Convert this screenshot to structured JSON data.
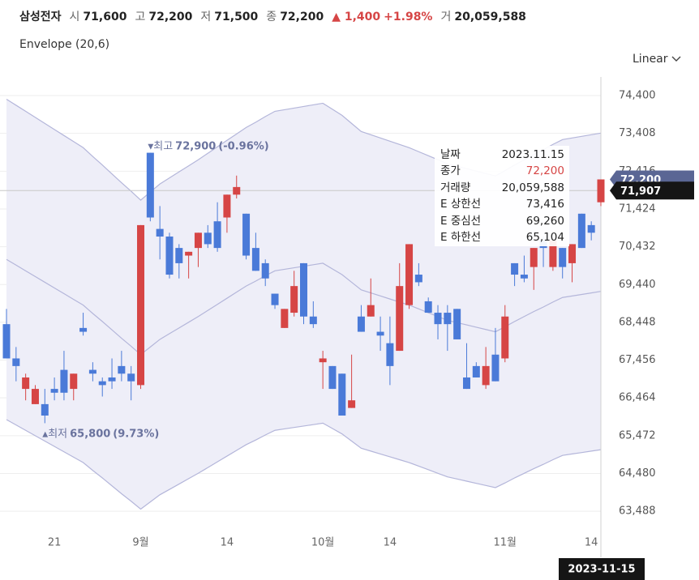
{
  "header": {
    "name": "삼성전자",
    "fields": [
      {
        "label": "시",
        "value": "71,600"
      },
      {
        "label": "고",
        "value": "72,200"
      },
      {
        "label": "저",
        "value": "71,500"
      },
      {
        "label": "종",
        "value": "72,200"
      }
    ],
    "change": "▲ 1,400",
    "change_pct": "+1.98%",
    "volume_label": "거",
    "volume": "20,059,588"
  },
  "indicator": "Envelope (20,6)",
  "scale_option": "Linear",
  "chart_data": {
    "type": "candlestick",
    "categories": [
      null,
      null,
      null,
      null,
      null,
      "21",
      null,
      null,
      null,
      null,
      null,
      null,
      null,
      null,
      "9월",
      null,
      null,
      null,
      null,
      null,
      null,
      null,
      null,
      "14",
      null,
      null,
      null,
      null,
      null,
      null,
      null,
      null,
      null,
      "10월",
      null,
      null,
      null,
      null,
      null,
      null,
      "14",
      null,
      null,
      null,
      null,
      null,
      null,
      null,
      null,
      null,
      null,
      null,
      "11월",
      null,
      null,
      null,
      null,
      null,
      null,
      null,
      null,
      "14",
      null
    ],
    "open": [
      68400,
      67500,
      66700,
      66300,
      66300,
      66700,
      67200,
      66700,
      68300,
      67200,
      66900,
      67000,
      67300,
      67100,
      66800,
      72900,
      70900,
      70700,
      70400,
      70200,
      70400,
      70800,
      71100,
      71200,
      71800,
      71300,
      70400,
      70000,
      69200,
      68300,
      68700,
      70000,
      68600,
      67400,
      67300,
      67100,
      66200,
      68600,
      68600,
      68200,
      67900,
      67700,
      68900,
      69700,
      69000,
      68700,
      68700,
      68800,
      67000,
      67300,
      66800,
      67600,
      67500,
      70000,
      69700,
      69900,
      70600,
      69900,
      70400,
      70000,
      71300,
      71000,
      71600
    ],
    "high": [
      68800,
      67800,
      67100,
      66800,
      66700,
      67000,
      67700,
      67100,
      68700,
      67400,
      67000,
      67500,
      67700,
      67300,
      71000,
      72900,
      71500,
      70800,
      70500,
      70300,
      70800,
      71000,
      71600,
      71800,
      72300,
      71300,
      70800,
      70100,
      69200,
      68800,
      69800,
      70000,
      69000,
      67700,
      67300,
      67100,
      67600,
      68900,
      69600,
      68600,
      68600,
      70000,
      70500,
      70000,
      69100,
      68900,
      68900,
      68800,
      67900,
      67400,
      67800,
      68300,
      68900,
      70000,
      70200,
      70400,
      70700,
      70600,
      70400,
      70500,
      71300,
      71100,
      72200
    ],
    "low": [
      67500,
      66900,
      66400,
      66300,
      65800,
      66400,
      66400,
      66400,
      68100,
      66900,
      66500,
      66700,
      66900,
      66400,
      66700,
      71100,
      70100,
      69600,
      69600,
      69600,
      69900,
      70400,
      70300,
      70800,
      71700,
      70100,
      69800,
      69400,
      68800,
      68300,
      68600,
      68400,
      68300,
      66700,
      66700,
      66000,
      66200,
      68200,
      68600,
      67700,
      66800,
      67700,
      68800,
      69400,
      68700,
      68000,
      67700,
      68000,
      66700,
      67000,
      66700,
      66900,
      67400,
      69400,
      69500,
      69300,
      69900,
      69800,
      69600,
      69500,
      70400,
      70600,
      71500
    ],
    "close": [
      67500,
      67300,
      67000,
      66700,
      66000,
      66600,
      66600,
      67100,
      68200,
      67100,
      66800,
      66900,
      67100,
      66900,
      71000,
      71200,
      70700,
      69700,
      70000,
      70300,
      70800,
      70500,
      70400,
      71800,
      72000,
      70200,
      69800,
      69600,
      68900,
      68800,
      69400,
      68600,
      68400,
      67500,
      66700,
      66000,
      66400,
      68200,
      68900,
      68100,
      67300,
      69400,
      70500,
      69500,
      68700,
      68400,
      68400,
      68000,
      66700,
      67000,
      67300,
      66900,
      68600,
      69700,
      69600,
      70400,
      70400,
      70600,
      69900,
      70500,
      70400,
      70800,
      72200
    ],
    "up_color": "#d64545",
    "down_color": "#4a7ad8",
    "series": [
      {
        "name": "E 상한선",
        "color": "#b4b6da",
        "values": [
          74306,
          74147,
          73988,
          73829,
          73670,
          73511,
          73352,
          73193,
          73034,
          72801,
          72578,
          72345,
          72112,
          71889,
          71656,
          71868,
          72080,
          72239,
          72398,
          72557,
          72716,
          72886,
          73055,
          73225,
          73394,
          73564,
          73702,
          73850,
          73988,
          74030,
          74073,
          74115,
          74158,
          74200,
          74041,
          73882,
          73670,
          73458,
          73373,
          73288,
          73204,
          73119,
          73034,
          72928,
          72822,
          72716,
          72610,
          72546,
          72483,
          72419,
          72356,
          72292,
          72430,
          72578,
          72716,
          72854,
          72981,
          73119,
          73246,
          73288,
          73331,
          73373,
          73416
        ]
      },
      {
        "name": "E 중심선",
        "color": "#b4b6da",
        "values": [
          70100,
          69950,
          69800,
          69650,
          69500,
          69350,
          69200,
          69050,
          68900,
          68680,
          68470,
          68250,
          68030,
          67820,
          67600,
          67800,
          68000,
          68150,
          68300,
          68450,
          68600,
          68760,
          68920,
          69080,
          69240,
          69400,
          69530,
          69670,
          69800,
          69840,
          69880,
          69920,
          69960,
          70000,
          69850,
          69700,
          69500,
          69300,
          69220,
          69140,
          69060,
          68980,
          68900,
          68800,
          68700,
          68600,
          68500,
          68440,
          68380,
          68320,
          68260,
          68200,
          68330,
          68470,
          68600,
          68730,
          68850,
          68980,
          69100,
          69140,
          69180,
          69220,
          69260
        ]
      },
      {
        "name": "E 하한선",
        "color": "#b4b6da",
        "values": [
          65894,
          65753,
          65612,
          65471,
          65330,
          65189,
          65048,
          64907,
          64766,
          64559,
          64362,
          64155,
          63948,
          63751,
          63544,
          63732,
          63920,
          64061,
          64202,
          64343,
          64484,
          64634,
          64785,
          64935,
          65086,
          65236,
          65358,
          65490,
          65612,
          65650,
          65687,
          65725,
          65762,
          65800,
          65659,
          65518,
          65330,
          65142,
          65067,
          64992,
          64916,
          64841,
          64766,
          64672,
          64578,
          64484,
          64390,
          64334,
          64277,
          64221,
          64164,
          64108,
          64230,
          64362,
          64484,
          64606,
          64719,
          64841,
          64954,
          64992,
          65029,
          65067,
          65104
        ]
      }
    ],
    "band_color": "#eeeef8",
    "ylim": [
      62980,
      74890
    ],
    "yticks": [
      {
        "value": 63488,
        "label": "63,488"
      },
      {
        "value": 64480,
        "label": "64,480"
      },
      {
        "value": 65472,
        "label": "65,472"
      },
      {
        "value": 66464,
        "label": "66,464"
      },
      {
        "value": 67456,
        "label": "67,456"
      },
      {
        "value": 68448,
        "label": "68,448"
      },
      {
        "value": 69440,
        "label": "69,440"
      },
      {
        "value": 70432,
        "label": "70,432"
      },
      {
        "value": 71424,
        "label": "71,424"
      },
      {
        "value": 72416,
        "label": "72,416"
      },
      {
        "value": 73408,
        "label": "73,408"
      },
      {
        "value": 74400,
        "label": "74,400"
      }
    ],
    "grid": true,
    "annotations": [
      {
        "kind": "max",
        "marker": "▼",
        "label": "최고",
        "value": 72900,
        "value_label": "72,900",
        "change": "(-0.96%)"
      },
      {
        "kind": "min",
        "marker": "▲",
        "label": "최저",
        "value": 65800,
        "value_label": "65,800",
        "change": "(9.73%)"
      }
    ],
    "price_tags": [
      {
        "value": 72200,
        "label": "72,200",
        "color": "#5a6694"
      },
      {
        "value": 71907,
        "label": "71,907",
        "color": "#151515"
      }
    ],
    "crosshair_date": "2023-11-15",
    "tooltip": {
      "rows": [
        {
          "label": "날짜",
          "value": "2023.11.15"
        },
        {
          "label": "종가",
          "value": "72,200"
        },
        {
          "label": "거래량",
          "value": "20,059,588"
        }
      ],
      "envelope": [
        "73,416",
        "69,260",
        "65,104"
      ]
    }
  }
}
